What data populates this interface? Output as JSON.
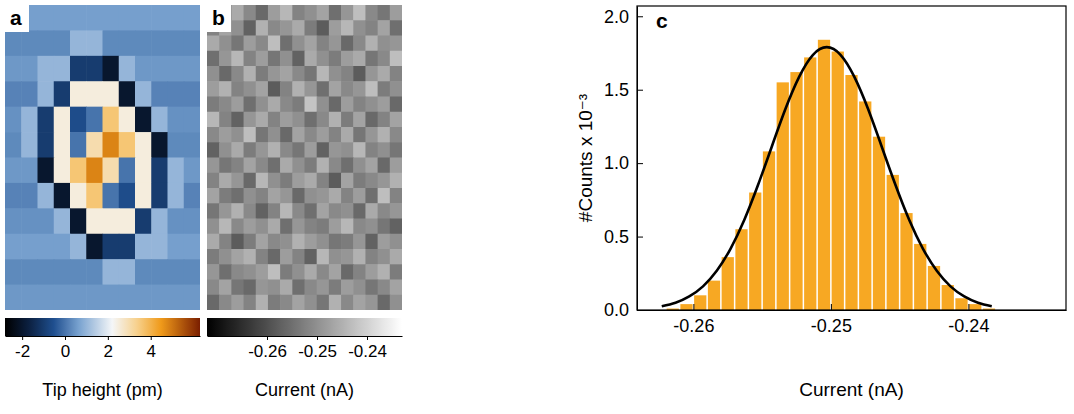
{
  "chart_data": [
    {
      "type": "heatmap",
      "panel_label": "a",
      "cells": [
        [
          0.6,
          0.6,
          0.6,
          0.6,
          0.6,
          0.6,
          0.6,
          0.6,
          0.6,
          0.6,
          0.6,
          0.6
        ],
        [
          0.3,
          0.3,
          0.3,
          0.3,
          1.0,
          1.0,
          0.3,
          0.3,
          0.3,
          0.3,
          0.3,
          0.3
        ],
        [
          0.5,
          0.5,
          1.0,
          1.0,
          -1.0,
          -1.0,
          -2.0,
          1.0,
          0.5,
          0.5,
          0.5,
          0.5
        ],
        [
          0.2,
          0.2,
          1.0,
          -1.0,
          2.5,
          2.5,
          2.5,
          -2.0,
          1.0,
          0.2,
          0.2,
          0.2
        ],
        [
          0.4,
          1.0,
          -1.0,
          2.5,
          -0.6,
          0.0,
          3.6,
          2.5,
          -2.0,
          1.0,
          0.4,
          0.4
        ],
        [
          0.3,
          1.0,
          -1.0,
          2.5,
          0.0,
          3.0,
          4.8,
          3.6,
          2.5,
          -2.0,
          0.3,
          0.3
        ],
        [
          0.5,
          0.5,
          -2.0,
          2.5,
          3.6,
          4.8,
          3.0,
          0.0,
          2.5,
          -1.0,
          1.0,
          0.5
        ],
        [
          0.2,
          0.2,
          1.0,
          -2.0,
          2.5,
          3.6,
          0.0,
          -0.6,
          2.5,
          -1.0,
          1.0,
          0.2
        ],
        [
          0.4,
          0.4,
          0.4,
          1.0,
          -2.0,
          2.5,
          2.5,
          2.5,
          -1.0,
          1.0,
          0.4,
          0.4
        ],
        [
          0.6,
          0.6,
          0.6,
          0.6,
          1.0,
          -2.0,
          -1.0,
          -1.0,
          1.0,
          1.0,
          0.6,
          0.6
        ],
        [
          0.3,
          0.3,
          0.3,
          0.3,
          0.3,
          0.3,
          1.0,
          1.0,
          0.3,
          0.3,
          0.3,
          0.3
        ],
        [
          0.5,
          0.5,
          0.5,
          0.5,
          0.5,
          0.5,
          0.5,
          0.5,
          0.5,
          0.5,
          0.5,
          0.5
        ]
      ],
      "colorbar": {
        "range": [
          -2.8,
          6.3
        ],
        "ticks": [
          -2,
          0,
          2,
          4
        ],
        "label": "Tip height (pm)"
      }
    },
    {
      "type": "heatmap",
      "panel_label": "b",
      "cells": [
        [
          -0.249,
          -0.253,
          -0.246,
          -0.251,
          -0.256,
          -0.248,
          -0.244,
          -0.252,
          -0.25,
          -0.247,
          -0.255,
          -0.249,
          -0.243,
          -0.251,
          -0.254,
          -0.248
        ],
        [
          -0.252,
          -0.247,
          -0.25,
          -0.257,
          -0.245,
          -0.251,
          -0.249,
          -0.246,
          -0.253,
          -0.258,
          -0.248,
          -0.244,
          -0.25,
          -0.252,
          -0.247,
          -0.255
        ],
        [
          -0.246,
          -0.25,
          -0.254,
          -0.248,
          -0.251,
          -0.243,
          -0.255,
          -0.25,
          -0.247,
          -0.252,
          -0.249,
          -0.256,
          -0.251,
          -0.245,
          -0.25,
          -0.249
        ],
        [
          -0.255,
          -0.249,
          -0.244,
          -0.252,
          -0.248,
          -0.254,
          -0.25,
          -0.257,
          -0.246,
          -0.25,
          -0.253,
          -0.248,
          -0.246,
          -0.254,
          -0.251,
          -0.243
        ],
        [
          -0.25,
          -0.256,
          -0.251,
          -0.245,
          -0.253,
          -0.249,
          -0.247,
          -0.251,
          -0.254,
          -0.244,
          -0.25,
          -0.252,
          -0.258,
          -0.249,
          -0.246,
          -0.252
        ],
        [
          -0.248,
          -0.245,
          -0.252,
          -0.25,
          -0.247,
          -0.258,
          -0.252,
          -0.245,
          -0.249,
          -0.255,
          -0.247,
          -0.251,
          -0.249,
          -0.243,
          -0.253,
          -0.25
        ],
        [
          -0.253,
          -0.251,
          -0.248,
          -0.255,
          -0.25,
          -0.246,
          -0.251,
          -0.253,
          -0.242,
          -0.25,
          -0.256,
          -0.248,
          -0.252,
          -0.25,
          -0.248,
          -0.256
        ],
        [
          -0.244,
          -0.252,
          -0.257,
          -0.249,
          -0.246,
          -0.252,
          -0.248,
          -0.25,
          -0.255,
          -0.251,
          -0.245,
          -0.253,
          -0.247,
          -0.256,
          -0.252,
          -0.247
        ],
        [
          -0.251,
          -0.248,
          -0.25,
          -0.243,
          -0.254,
          -0.25,
          -0.256,
          -0.247,
          -0.251,
          -0.248,
          -0.252,
          -0.246,
          -0.254,
          -0.249,
          -0.245,
          -0.251
        ],
        [
          -0.257,
          -0.25,
          -0.246,
          -0.253,
          -0.249,
          -0.245,
          -0.251,
          -0.254,
          -0.248,
          -0.257,
          -0.249,
          -0.25,
          -0.244,
          -0.252,
          -0.25,
          -0.254
        ],
        [
          -0.249,
          -0.254,
          -0.252,
          -0.247,
          -0.251,
          -0.255,
          -0.246,
          -0.25,
          -0.253,
          -0.245,
          -0.251,
          -0.255,
          -0.25,
          -0.247,
          -0.256,
          -0.248
        ],
        [
          -0.252,
          -0.246,
          -0.249,
          -0.256,
          -0.244,
          -0.25,
          -0.253,
          -0.248,
          -0.246,
          -0.252,
          -0.258,
          -0.247,
          -0.253,
          -0.251,
          -0.249,
          -0.245
        ],
        [
          -0.247,
          -0.253,
          -0.255,
          -0.25,
          -0.252,
          -0.247,
          -0.249,
          -0.256,
          -0.25,
          -0.249,
          -0.246,
          -0.252,
          -0.248,
          -0.255,
          -0.243,
          -0.252
        ],
        [
          -0.254,
          -0.249,
          -0.245,
          -0.251,
          -0.257,
          -0.252,
          -0.244,
          -0.251,
          -0.255,
          -0.247,
          -0.251,
          -0.25,
          -0.256,
          -0.246,
          -0.251,
          -0.249
        ],
        [
          -0.25,
          -0.244,
          -0.251,
          -0.248,
          -0.25,
          -0.246,
          -0.255,
          -0.249,
          -0.252,
          -0.253,
          -0.248,
          -0.244,
          -0.251,
          -0.25,
          -0.254,
          -0.257
        ],
        [
          -0.246,
          -0.252,
          -0.258,
          -0.253,
          -0.247,
          -0.251,
          -0.25,
          -0.245,
          -0.248,
          -0.25,
          -0.254,
          -0.253,
          -0.249,
          -0.257,
          -0.248,
          -0.25
        ],
        [
          -0.253,
          -0.25,
          -0.247,
          -0.245,
          -0.252,
          -0.256,
          -0.248,
          -0.252,
          -0.257,
          -0.244,
          -0.25,
          -0.249,
          -0.245,
          -0.252,
          -0.25,
          -0.246
        ],
        [
          -0.249,
          -0.255,
          -0.251,
          -0.25,
          -0.248,
          -0.243,
          -0.253,
          -0.25,
          -0.246,
          -0.251,
          -0.247,
          -0.256,
          -0.252,
          -0.248,
          -0.245,
          -0.253
        ],
        [
          -0.251,
          -0.247,
          -0.254,
          -0.256,
          -0.249,
          -0.25,
          -0.246,
          -0.255,
          -0.251,
          -0.249,
          -0.253,
          -0.248,
          -0.25,
          -0.254,
          -0.251,
          -0.247
        ],
        [
          -0.256,
          -0.251,
          -0.248,
          -0.252,
          -0.245,
          -0.253,
          -0.251,
          -0.247,
          -0.25,
          -0.254,
          -0.245,
          -0.251,
          -0.247,
          -0.249,
          -0.256,
          -0.25
        ]
      ],
      "colorbar": {
        "range": [
          -0.272,
          -0.233
        ],
        "ticks": [
          -0.26,
          -0.25,
          -0.24
        ],
        "label": "Current (nA)"
      }
    },
    {
      "type": "histogram",
      "panel_label": "c",
      "bins": [
        -0.262,
        -0.261,
        -0.26,
        -0.259,
        -0.258,
        -0.257,
        -0.256,
        -0.255,
        -0.254,
        -0.253,
        -0.252,
        -0.251,
        -0.25,
        -0.249,
        -0.248,
        -0.247,
        -0.246,
        -0.245,
        -0.244,
        -0.243,
        -0.242,
        -0.241,
        -0.24,
        -0.239,
        -0.238
      ],
      "counts": [
        0.01,
        0.04,
        0.1,
        0.2,
        0.36,
        0.55,
        0.8,
        1.08,
        1.55,
        1.62,
        1.72,
        1.84,
        1.76,
        1.6,
        1.42,
        1.18,
        0.92,
        0.66,
        0.45,
        0.3,
        0.17,
        0.08,
        0.04,
        0.01
      ],
      "color": "#f7a823",
      "fit": {
        "color": "#000000",
        "x": [
          -0.2623,
          -0.2613,
          -0.2603,
          -0.2593,
          -0.2583,
          -0.2573,
          -0.2563,
          -0.2553,
          -0.2543,
          -0.2533,
          -0.2523,
          -0.2513,
          -0.2503,
          -0.2493,
          -0.2483,
          -0.2473,
          -0.2463,
          -0.2453,
          -0.2443,
          -0.2433,
          -0.2423,
          -0.2413,
          -0.2403,
          -0.2393,
          -0.2383
        ],
        "values": [
          0.025,
          0.049,
          0.092,
          0.161,
          0.267,
          0.417,
          0.613,
          0.851,
          1.112,
          1.37,
          1.589,
          1.738,
          1.79,
          1.738,
          1.589,
          1.37,
          1.112,
          0.851,
          0.613,
          0.417,
          0.267,
          0.161,
          0.092,
          0.049,
          0.025
        ]
      },
      "xlim": [
        -0.2641,
        -0.2329
      ],
      "xticks": [
        -0.26,
        -0.25,
        -0.24
      ],
      "ylim": [
        0,
        2.07
      ],
      "yticks": [
        {
          "value": 0,
          "label": "0.0"
        },
        {
          "value": 0.5,
          "label": "0.5"
        },
        {
          "value": 1,
          "label": "1.0"
        },
        {
          "value": 1.5,
          "label": "1.5"
        },
        {
          "value": 2,
          "label": "2.0"
        }
      ],
      "xlabel": "Current (nA)",
      "ylabel": "#Counts x 10⁻³"
    }
  ]
}
